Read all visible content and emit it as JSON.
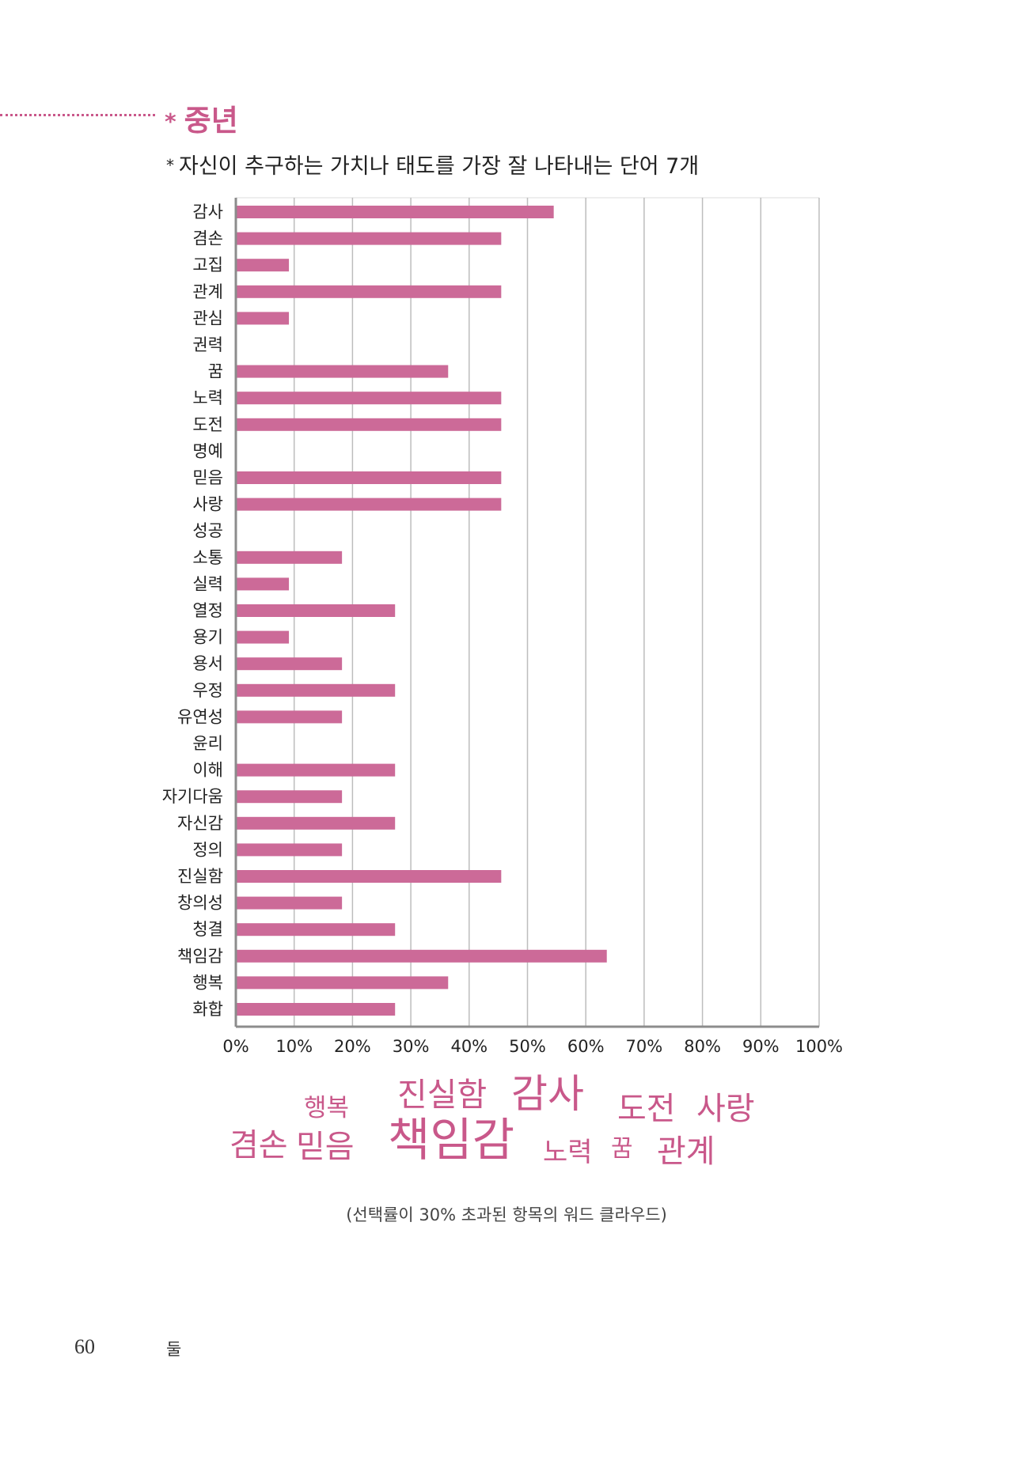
{
  "section": {
    "marker": "*",
    "title": "중년"
  },
  "subtitle": {
    "marker": "*",
    "text": "자신이 추구하는 가치나 태도를 가장 잘 나타내는 단어 7개"
  },
  "colors": {
    "accent": "#c9588a",
    "bar": "#cc6a98",
    "grid": "#bdbdbd",
    "axis": "#8c8c8c"
  },
  "chart_data": {
    "type": "bar",
    "orientation": "horizontal",
    "categories": [
      "감사",
      "겸손",
      "고집",
      "관계",
      "관심",
      "권력",
      "꿈",
      "노력",
      "도전",
      "명예",
      "믿음",
      "사랑",
      "성공",
      "소통",
      "실력",
      "열정",
      "용기",
      "용서",
      "우정",
      "유연성",
      "윤리",
      "이해",
      "자기다움",
      "자신감",
      "정의",
      "진실함",
      "창의성",
      "청결",
      "책임감",
      "행복",
      "화합"
    ],
    "values": [
      54.5,
      45.5,
      9.1,
      45.5,
      9.1,
      0,
      36.4,
      45.5,
      45.5,
      0,
      45.5,
      45.5,
      0,
      18.2,
      9.1,
      27.3,
      9.1,
      18.2,
      27.3,
      18.2,
      0,
      27.3,
      18.2,
      27.3,
      18.2,
      45.5,
      18.2,
      27.3,
      63.6,
      36.4,
      27.3
    ],
    "xlim": [
      0,
      100
    ],
    "xticks": [
      "0%",
      "10%",
      "20%",
      "30%",
      "40%",
      "50%",
      "60%",
      "70%",
      "80%",
      "90%",
      "100%"
    ],
    "grid": true
  },
  "word_cloud": {
    "words": [
      {
        "text": "행복",
        "size": 31
      },
      {
        "text": "진실함",
        "size": 41
      },
      {
        "text": "감사",
        "size": 50
      },
      {
        "text": "도전",
        "size": 40
      },
      {
        "text": "사랑",
        "size": 40
      },
      {
        "text": "겸손",
        "size": 40
      },
      {
        "text": "믿음",
        "size": 40
      },
      {
        "text": "책임감",
        "size": 58
      },
      {
        "text": "노력",
        "size": 34
      },
      {
        "text": "꿈",
        "size": 30
      },
      {
        "text": "관계",
        "size": 40
      }
    ],
    "caption": "(선택률이 30% 초과된 항목의 워드 클라우드)"
  },
  "footer": {
    "page_number": "60",
    "running_head": "둘"
  }
}
